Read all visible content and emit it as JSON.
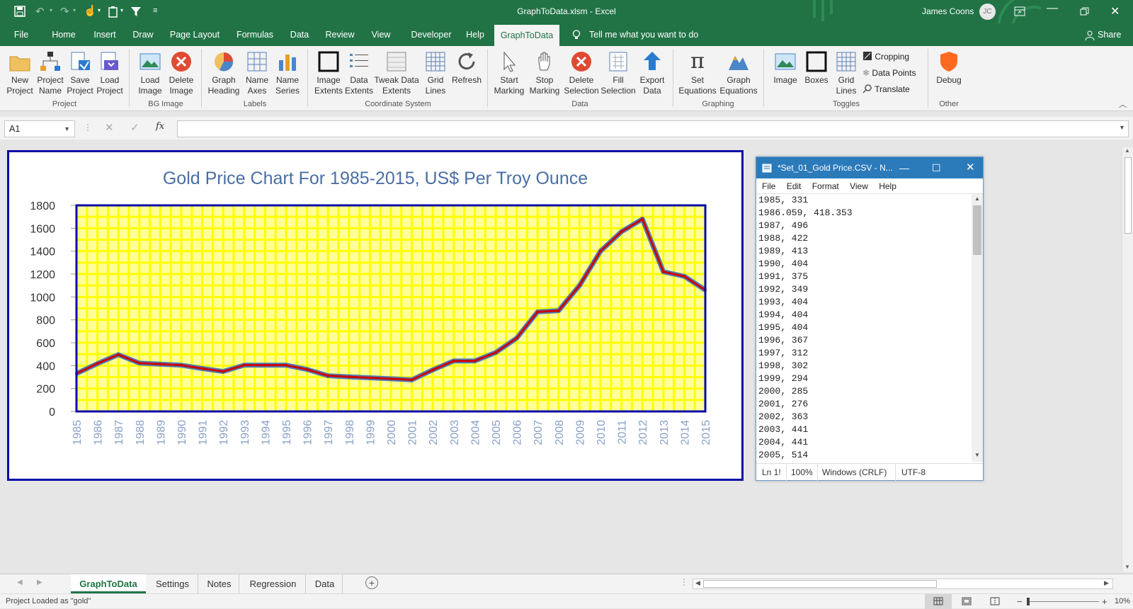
{
  "window": {
    "title": "GraphToData.xlsm  -  Excel",
    "user": "James Coons",
    "user_initials": "JC",
    "share_label": "Share"
  },
  "tabs": [
    "File",
    "Home",
    "Insert",
    "Draw",
    "Page Layout",
    "Formulas",
    "Data",
    "Review",
    "View",
    "Developer",
    "Help",
    "GraphToData"
  ],
  "tell_me": "Tell me what you want to do",
  "ribbon": {
    "groups": {
      "project": "Project",
      "bg_image": "BG Image",
      "labels": "Labels",
      "coordinate_system": "Coordinate System",
      "data": "Data",
      "graphing": "Graphing",
      "toggles": "Toggles",
      "other": "Other"
    },
    "buttons": {
      "new_project": [
        "New",
        "Project"
      ],
      "project_name": [
        "Project",
        "Name"
      ],
      "save_project": [
        "Save",
        "Project"
      ],
      "load_project": [
        "Load",
        "Project"
      ],
      "load_image": [
        "Load",
        "Image"
      ],
      "delete_image": [
        "Delete",
        "Image"
      ],
      "graph_heading": [
        "Graph",
        "Heading"
      ],
      "name_axes": [
        "Name",
        "Axes"
      ],
      "name_series": [
        "Name",
        "Series"
      ],
      "image_extents": [
        "Image",
        "Extents"
      ],
      "data_extents": [
        "Data",
        "Extents"
      ],
      "tweak_data_extents": [
        "Tweak Data",
        "Extents"
      ],
      "grid_lines": [
        "Grid",
        "Lines"
      ],
      "refresh": [
        "Refresh",
        ""
      ],
      "start_marking": [
        "Start",
        "Marking"
      ],
      "stop_marking": [
        "Stop",
        "Marking"
      ],
      "delete_selection": [
        "Delete",
        "Selection"
      ],
      "fill_selection": [
        "Fill",
        "Selection"
      ],
      "export_data": [
        "Export",
        "Data"
      ],
      "set_equations": [
        "Set",
        "Equations"
      ],
      "graph_equations": [
        "Graph",
        "Equations"
      ],
      "image_toggle": [
        "Image",
        ""
      ],
      "boxes_toggle": [
        "Boxes",
        ""
      ],
      "grid_lines_toggle": [
        "Grid",
        "Lines"
      ],
      "debug": [
        "Debug",
        ""
      ]
    },
    "toggle_small": {
      "cropping": "Cropping",
      "data_points": "Data Points",
      "translate": "Translate"
    }
  },
  "formula_bar": {
    "name_box": "A1",
    "fx": "fx",
    "formula": ""
  },
  "chart_data": {
    "type": "line",
    "title": "Gold Price Chart For 1985-2015,   US$ Per Troy Ounce",
    "xlabel": "",
    "ylabel": "",
    "ylim": [
      0,
      1800
    ],
    "yticks": [
      0,
      200,
      400,
      600,
      800,
      1000,
      1200,
      1400,
      1600,
      1800
    ],
    "categories": [
      "1985",
      "1986",
      "1987",
      "1988",
      "1989",
      "1990",
      "1991",
      "1992",
      "1993",
      "1994",
      "1995",
      "1996",
      "1997",
      "1998",
      "1999",
      "2000",
      "2001",
      "2002",
      "2003",
      "2004",
      "2005",
      "2006",
      "2007",
      "2008",
      "2009",
      "2010",
      "2011",
      "2012",
      "2013",
      "2014",
      "2015"
    ],
    "values": [
      331,
      418,
      496,
      422,
      413,
      404,
      375,
      349,
      404,
      404,
      404,
      367,
      312,
      302,
      294,
      285,
      276,
      363,
      441,
      441,
      514,
      640,
      870,
      880,
      1100,
      1400,
      1570,
      1680,
      1220,
      1180,
      1060
    ],
    "grid": true,
    "colors": {
      "plot_bg": "#ffff99",
      "grid": "#ffff00",
      "line_base": "#4f7fb8",
      "line_marked": "#cc0000",
      "frame": "#0a0aa8"
    }
  },
  "notepad": {
    "title": "*Set_01_Gold Price.CSV - N...",
    "menu": [
      "File",
      "Edit",
      "Format",
      "View",
      "Help"
    ],
    "lines": [
      "1985, 331",
      "1986.059, 418.353",
      "1987, 496",
      "1988, 422",
      "1989, 413",
      "1990, 404",
      "1991, 375",
      "1992, 349",
      "1993, 404",
      "1994, 404",
      "1995, 404",
      "1996, 367",
      "1997, 312",
      "1998, 302",
      "1999, 294",
      "2000, 285",
      "2001, 276",
      "2002, 363",
      "2003, 441",
      "2004, 441",
      "2005, 514"
    ],
    "status_pos": "Ln 1!",
    "status_zoom": "100%",
    "status_eol": "Windows (CRLF)",
    "status_enc": "UTF-8"
  },
  "sheet_tabs": [
    "GraphToData",
    "Settings",
    "Notes",
    "Regression",
    "Data"
  ],
  "status": {
    "message": "Project Loaded as \"gold\"",
    "zoom": "10%"
  }
}
